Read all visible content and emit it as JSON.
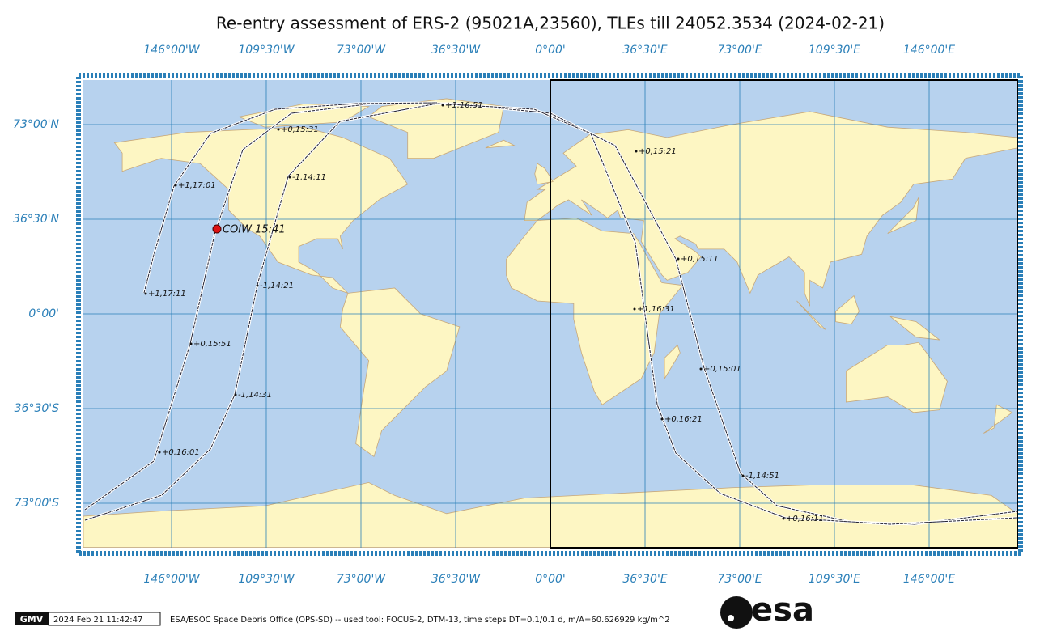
{
  "header": {
    "title": "Re-entry assessment of ERS-2 (95021A,23560), TLEs till 24052.3534 (2024-02-21)"
  },
  "map": {
    "lon_ticks": [
      {
        "value": -146,
        "label": "146°00'W"
      },
      {
        "value": -109.5,
        "label": "109°30'W"
      },
      {
        "value": -73,
        "label": "73°00'W"
      },
      {
        "value": -36.5,
        "label": "36°30'W"
      },
      {
        "value": 0,
        "label": "0°00'"
      },
      {
        "value": 36.5,
        "label": "36°30'E"
      },
      {
        "value": 73,
        "label": "73°00'E"
      },
      {
        "value": 109.5,
        "label": "109°30'E"
      },
      {
        "value": 146,
        "label": "146°00'E"
      }
    ],
    "lat_ticks": [
      {
        "value": 73,
        "label": "73°00'N"
      },
      {
        "value": 36.5,
        "label": "36°30'N"
      },
      {
        "value": 0,
        "label": "0°00'"
      },
      {
        "value": -36.5,
        "label": "36°30'S"
      },
      {
        "value": -73,
        "label": "73°00'S"
      }
    ],
    "annotations": [
      "+1,16:51",
      "+0,15:31",
      "+0,15:21",
      "-1,14:11",
      "+1,17:01",
      "+0,15:11",
      "-1,14:21",
      "+1,17:11",
      "+1,16:31",
      "+0,15:51",
      "+0,15:01",
      "-1,14:31",
      "+0,16:21",
      "+0,16:01",
      "-1,14:51",
      "+0,16:11"
    ],
    "impact_label": "COIW 15:41"
  },
  "footer": {
    "logo": "GMV",
    "timestamp": "2024 Feb 21 11:42:47",
    "credit": "ESA/ESOC Space Debris Office (OPS-SD) -- used tool: FOCUS-2, DTM-13, time steps DT=0.1/0.1 d, m/A=60.626929 kg/m^2",
    "agency_logo": "esa"
  }
}
